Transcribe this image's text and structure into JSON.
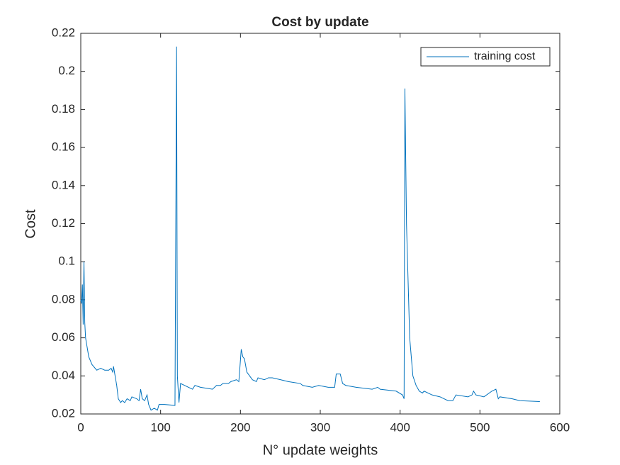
{
  "chart_data": {
    "type": "line",
    "title": "Cost by update",
    "xlabel": "N° update weights",
    "ylabel": "Cost",
    "x": [
      0,
      1,
      2,
      3,
      4,
      5,
      6,
      8,
      10,
      14,
      20,
      25,
      30,
      35,
      38,
      40,
      41,
      43,
      45,
      47,
      50,
      52,
      55,
      58,
      62,
      64,
      70,
      73,
      75,
      77,
      80,
      83,
      85,
      88,
      92,
      96,
      98,
      105,
      118,
      120,
      121,
      123,
      125,
      130,
      135,
      140,
      143,
      150,
      165,
      170,
      175,
      178,
      185,
      188,
      195,
      198,
      201,
      203,
      205,
      208,
      215,
      220,
      222,
      230,
      235,
      240,
      250,
      260,
      275,
      278,
      290,
      298,
      310,
      318,
      320,
      325,
      328,
      332,
      345,
      365,
      372,
      375,
      395,
      403,
      405,
      406,
      408,
      412,
      416,
      420,
      424,
      428,
      430,
      440,
      450,
      460,
      466,
      470,
      485,
      490,
      492,
      495,
      505,
      515,
      520,
      523,
      525,
      540,
      550,
      575
    ],
    "series": [
      {
        "name": "training cost",
        "color": "#0072bd",
        "values": [
          0.08,
          0.078,
          0.088,
          0.067,
          0.1,
          0.068,
          0.06,
          0.055,
          0.05,
          0.046,
          0.043,
          0.044,
          0.043,
          0.043,
          0.044,
          0.042,
          0.045,
          0.04,
          0.035,
          0.028,
          0.026,
          0.027,
          0.026,
          0.028,
          0.027,
          0.029,
          0.028,
          0.027,
          0.033,
          0.028,
          0.027,
          0.03,
          0.025,
          0.022,
          0.023,
          0.022,
          0.025,
          0.025,
          0.0245,
          0.213,
          0.04,
          0.026,
          0.036,
          0.035,
          0.034,
          0.033,
          0.035,
          0.034,
          0.033,
          0.035,
          0.035,
          0.036,
          0.036,
          0.037,
          0.038,
          0.037,
          0.054,
          0.05,
          0.049,
          0.042,
          0.038,
          0.037,
          0.039,
          0.038,
          0.039,
          0.039,
          0.038,
          0.037,
          0.036,
          0.035,
          0.034,
          0.035,
          0.034,
          0.034,
          0.041,
          0.041,
          0.036,
          0.035,
          0.034,
          0.033,
          0.034,
          0.033,
          0.032,
          0.03,
          0.028,
          0.191,
          0.12,
          0.06,
          0.04,
          0.035,
          0.032,
          0.031,
          0.032,
          0.03,
          0.029,
          0.027,
          0.027,
          0.03,
          0.029,
          0.03,
          0.032,
          0.03,
          0.029,
          0.032,
          0.033,
          0.028,
          0.029,
          0.028,
          0.027,
          0.0265
        ]
      }
    ],
    "xlim": [
      0,
      600
    ],
    "xticks": [
      0,
      100,
      200,
      300,
      400,
      500,
      600
    ],
    "ylim": [
      0.02,
      0.22
    ],
    "yticks": [
      0.02,
      0.04,
      0.06,
      0.08,
      0.1,
      0.12,
      0.14,
      0.16,
      0.18,
      0.2,
      0.22
    ],
    "legend": "northeast",
    "grid": false
  }
}
